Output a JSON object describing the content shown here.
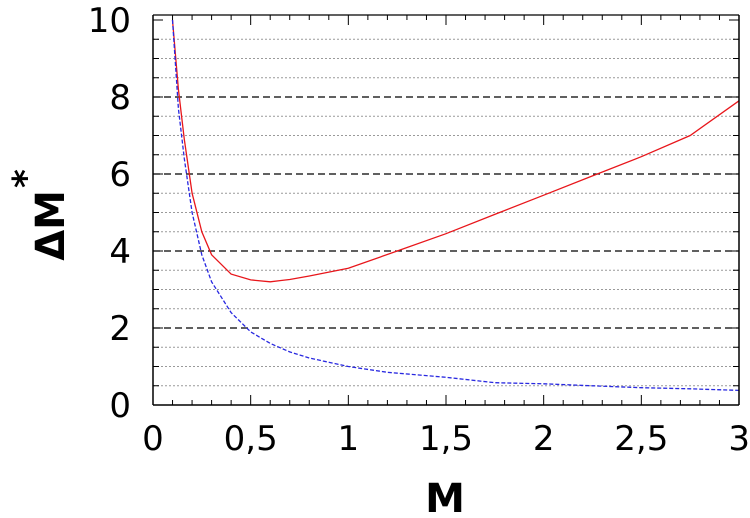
{
  "chart_data": {
    "type": "line",
    "xlabel": "M",
    "ylabel": {
      "main": "ΔM",
      "superscript": "*"
    },
    "xlim": [
      0,
      3
    ],
    "ylim": [
      0,
      10
    ],
    "x_ticks": [
      {
        "value": 0,
        "label": "0"
      },
      {
        "value": 0.5,
        "label": "0,5"
      },
      {
        "value": 1,
        "label": "1"
      },
      {
        "value": 1.5,
        "label": "1,5"
      },
      {
        "value": 2,
        "label": "2"
      },
      {
        "value": 2.5,
        "label": "2,5"
      },
      {
        "value": 3,
        "label": "3"
      }
    ],
    "y_ticks": [
      {
        "value": 0,
        "label": "0"
      },
      {
        "value": 2,
        "label": "2"
      },
      {
        "value": 4,
        "label": "4"
      },
      {
        "value": 6,
        "label": "6"
      },
      {
        "value": 8,
        "label": "8"
      },
      {
        "value": 10,
        "label": "10"
      }
    ],
    "grid": {
      "major_y_dashed": [
        2,
        4,
        6,
        8
      ],
      "minor_y_dotted": true
    },
    "series": [
      {
        "color": "#e8161b",
        "style": "solid",
        "x": [
          0.1,
          0.13,
          0.16,
          0.2,
          0.25,
          0.3,
          0.4,
          0.5,
          0.6,
          0.65,
          0.7,
          0.8,
          1.0,
          1.25,
          1.5,
          1.75,
          2.0,
          2.25,
          2.5,
          2.75,
          3.0
        ],
        "y": [
          10.0,
          8.2,
          6.9,
          5.5,
          4.5,
          3.9,
          3.4,
          3.25,
          3.2,
          3.23,
          3.26,
          3.35,
          3.55,
          4.0,
          4.45,
          4.95,
          5.45,
          5.95,
          6.45,
          7.0,
          7.9
        ]
      },
      {
        "color": "#2828e0",
        "style": "dashed",
        "x": [
          0.1,
          0.13,
          0.16,
          0.2,
          0.25,
          0.3,
          0.4,
          0.5,
          0.6,
          0.7,
          0.8,
          1.0,
          1.2,
          1.5,
          1.75,
          2.0,
          2.25,
          2.5,
          2.75,
          3.0
        ],
        "y": [
          10.0,
          7.7,
          6.4,
          5.0,
          3.9,
          3.2,
          2.4,
          1.9,
          1.6,
          1.38,
          1.22,
          1.0,
          0.85,
          0.72,
          0.58,
          0.55,
          0.5,
          0.45,
          0.42,
          0.38
        ]
      }
    ]
  }
}
